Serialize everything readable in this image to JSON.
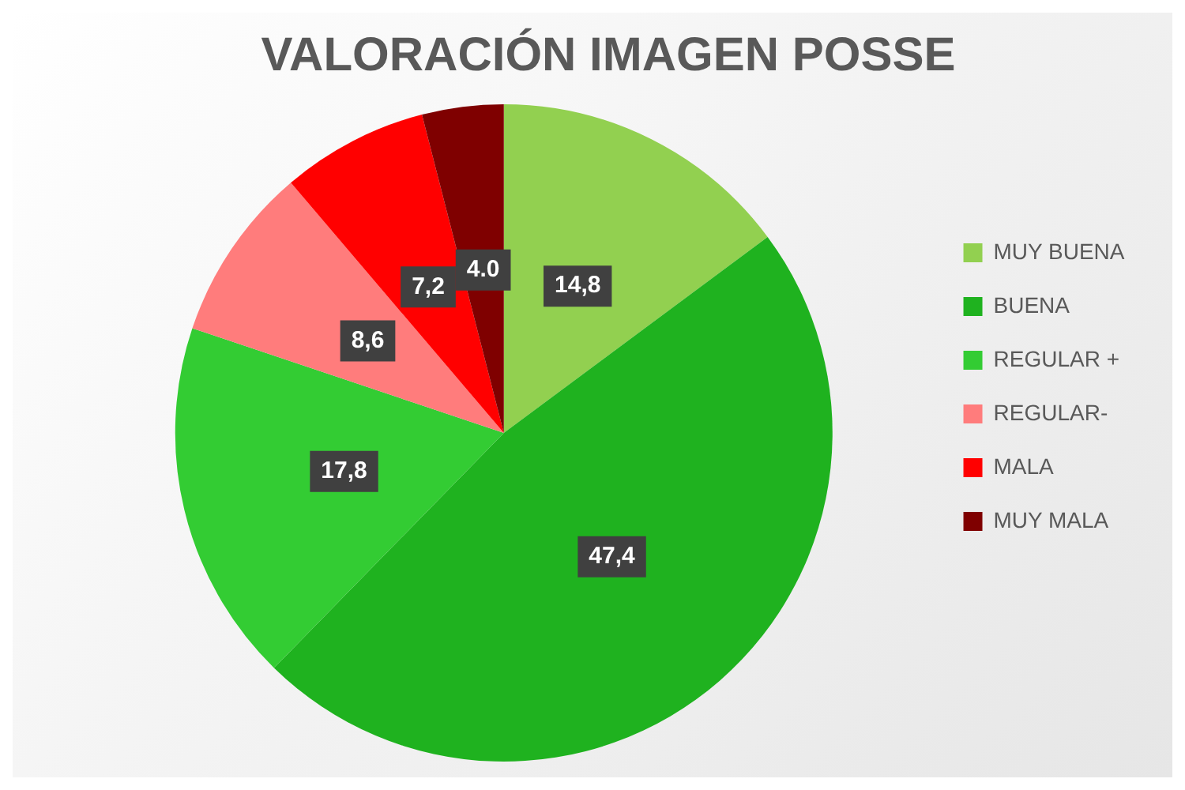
{
  "chart_data": {
    "type": "pie",
    "title": "VALORACIÓN IMAGEN POSSE",
    "categories": [
      "MUY BUENA",
      "BUENA",
      "REGULAR +",
      "REGULAR-",
      "MALA",
      "MUY MALA"
    ],
    "values": [
      14.8,
      47.4,
      17.8,
      8.6,
      7.2,
      4.0
    ],
    "value_labels": [
      "14,8",
      "47,4",
      "17,8",
      "8,6",
      "7,2",
      "4.0"
    ],
    "colors": [
      "#92d050",
      "#1fb21f",
      "#33cc33",
      "#ff7c7c",
      "#ff0000",
      "#7f0000"
    ],
    "legend": "right"
  }
}
